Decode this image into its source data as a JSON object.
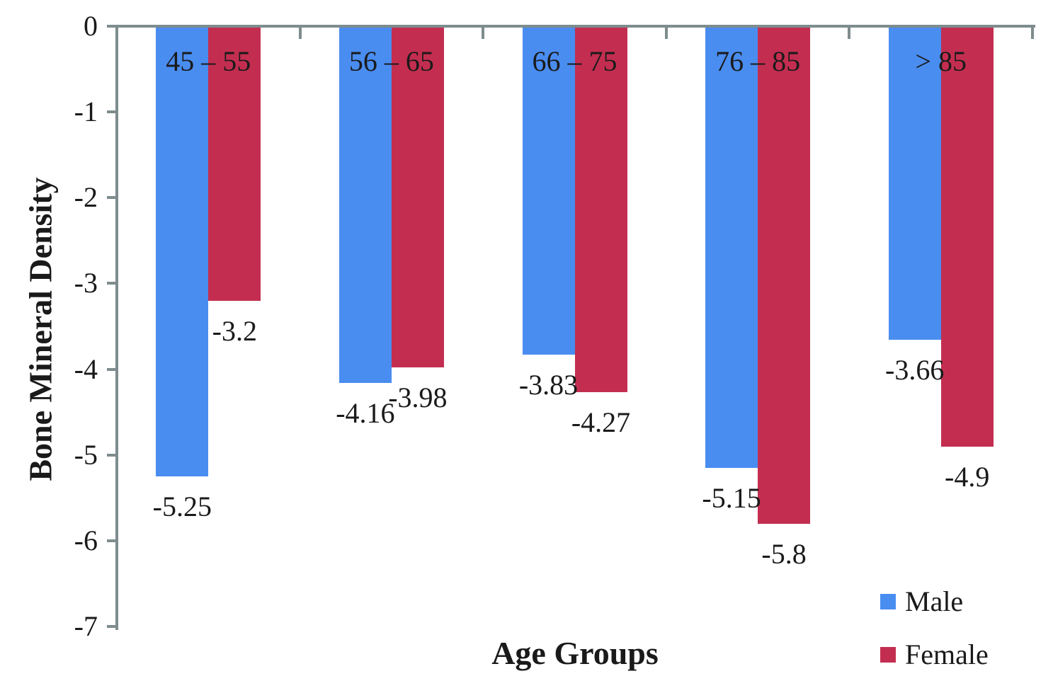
{
  "chart_data": {
    "type": "bar",
    "orientation": "vertical-negative",
    "title": "",
    "xlabel": "Age Groups",
    "ylabel": "Bone Mineral Density",
    "categories": [
      "45 – 55",
      "56 – 65",
      "66 – 75",
      "76 – 85",
      "> 85"
    ],
    "series": [
      {
        "name": "Male",
        "color": "#4A8DF0",
        "values": [
          -5.25,
          -4.16,
          -3.83,
          -5.15,
          -3.66
        ],
        "labels": [
          "-5.25",
          "-4.16",
          "-3.83",
          "-5.15",
          "-3.66"
        ]
      },
      {
        "name": "Female",
        "color": "#C32E50",
        "values": [
          -3.2,
          -3.98,
          -4.27,
          -5.8,
          -4.9
        ],
        "labels": [
          "-3.2",
          "-3.98",
          "-4.27",
          "-5.8",
          "-4.9"
        ]
      }
    ],
    "y_ticks": [
      "0",
      "-1",
      "-2",
      "-3",
      "-4",
      "-5",
      "-6",
      "-7"
    ],
    "ylim": [
      0,
      -7
    ],
    "grid": false,
    "legend_position": "bottom-right",
    "axis_color": "#7E8C8D",
    "text_color": "#1A1A1A",
    "background": "#FFFFFF"
  }
}
